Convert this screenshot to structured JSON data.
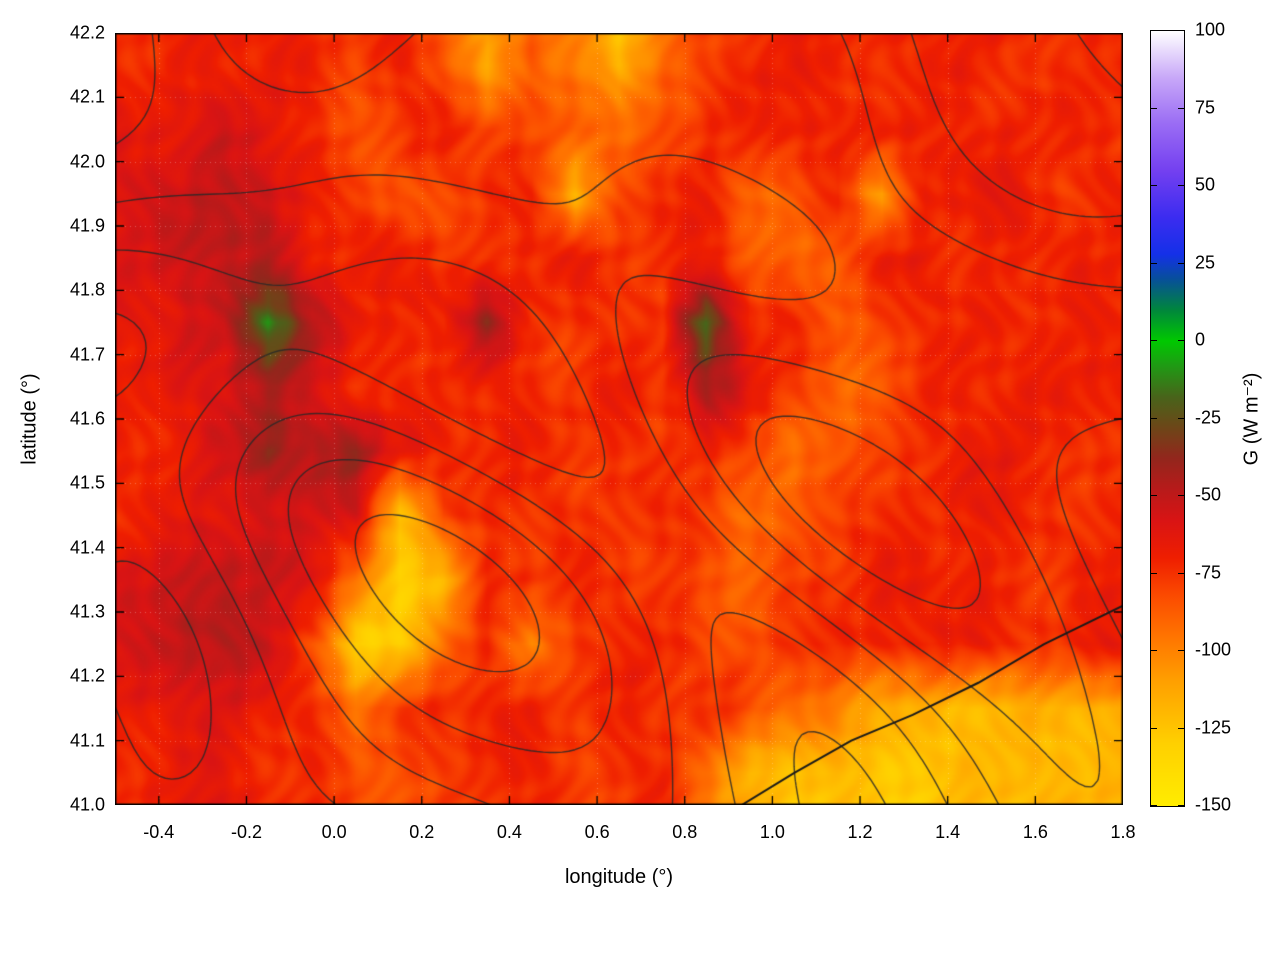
{
  "chart_data": {
    "type": "heatmap",
    "title": "",
    "xlabel": "longitude (°)",
    "ylabel": "latitude (°)",
    "colorbar_label": "G (W m⁻²)",
    "units": "W m⁻²",
    "xlim": [
      -0.5,
      1.8
    ],
    "ylim": [
      41.0,
      42.2
    ],
    "clim": [
      -150,
      100
    ],
    "xtick_values": [
      -0.4,
      -0.2,
      0.0,
      0.2,
      0.4,
      0.6,
      0.8,
      1.0,
      1.2,
      1.4,
      1.6,
      1.8
    ],
    "xtick_labels": [
      "-0.4",
      "-0.2",
      "0.0",
      "0.2",
      "0.4",
      "0.6",
      "0.8",
      "1.0",
      "1.2",
      "1.4",
      "1.6",
      "1.8"
    ],
    "ytick_values": [
      41.0,
      41.1,
      41.2,
      41.3,
      41.4,
      41.5,
      41.6,
      41.7,
      41.8,
      41.9,
      42.0,
      42.1,
      42.2
    ],
    "ytick_labels": [
      "41.0",
      "41.1",
      "41.2",
      "41.3",
      "41.4",
      "41.5",
      "41.6",
      "41.7",
      "41.8",
      "41.9",
      "42.0",
      "42.1",
      "42.2"
    ],
    "cbar_tick_values": [
      100,
      75,
      50,
      25,
      0,
      -25,
      -50,
      -75,
      -100,
      -125,
      -150
    ],
    "cbar_tick_labels": [
      "100",
      "75",
      "50",
      "25",
      "0",
      "-25",
      "-50",
      "-75",
      "-100",
      "-125",
      "-150"
    ],
    "palette_stops": [
      [
        -150,
        "#ffec00"
      ],
      [
        -130,
        "#ffd000"
      ],
      [
        -110,
        "#ffa000"
      ],
      [
        -95,
        "#ff7300"
      ],
      [
        -82,
        "#fb4a00"
      ],
      [
        -70,
        "#ef1e00"
      ],
      [
        -58,
        "#d91414"
      ],
      [
        -48,
        "#b81a1a"
      ],
      [
        -38,
        "#93261c"
      ],
      [
        -28,
        "#6d4618"
      ],
      [
        -18,
        "#48641a"
      ],
      [
        -8,
        "#1f9a14"
      ],
      [
        0,
        "#00c800"
      ],
      [
        10,
        "#00863c"
      ],
      [
        20,
        "#074f9a"
      ],
      [
        28,
        "#1430e8"
      ],
      [
        40,
        "#3c2cf0"
      ],
      [
        55,
        "#7440f0"
      ],
      [
        70,
        "#9a6cf4"
      ],
      [
        85,
        "#c8a8f8"
      ],
      [
        100,
        "#ffffff"
      ]
    ],
    "grid_lon_start": -0.45,
    "grid_lat_start": 42.15,
    "grid_step": 0.1,
    "grid_lon_count": 23,
    "grid_lat_count": 12,
    "values": [
      [
        -72,
        -70,
        -66,
        -70,
        -74,
        -78,
        -72,
        -85,
        -115,
        -85,
        -95,
        -120,
        -90,
        -78,
        -72,
        -70,
        -72,
        -74,
        -72,
        -70,
        -72,
        -74,
        -72
      ],
      [
        -66,
        -58,
        -55,
        -62,
        -72,
        -80,
        -78,
        -72,
        -78,
        -82,
        -90,
        -95,
        -80,
        -74,
        -72,
        -70,
        -68,
        -72,
        -74,
        -72,
        -70,
        -72,
        -74
      ],
      [
        -60,
        -55,
        -50,
        -52,
        -66,
        -80,
        -85,
        -80,
        -76,
        -72,
        -115,
        -80,
        -72,
        -70,
        -85,
        -88,
        -72,
        -110,
        -70,
        -68,
        -70,
        -74,
        -72
      ],
      [
        -56,
        -50,
        -54,
        -48,
        -66,
        -72,
        -70,
        -74,
        -76,
        -72,
        -70,
        -72,
        -74,
        -72,
        -88,
        -90,
        -85,
        -72,
        -66,
        -70,
        -72,
        -70,
        -68
      ],
      [
        -66,
        -60,
        -52,
        -8,
        -50,
        -68,
        -74,
        -72,
        -42,
        -74,
        -72,
        -74,
        -72,
        -12,
        -70,
        -74,
        -88,
        -82,
        -72,
        -74,
        -72,
        -68,
        -70
      ],
      [
        -70,
        -62,
        -56,
        -45,
        -60,
        -70,
        -72,
        -76,
        -72,
        -74,
        -76,
        -72,
        -74,
        -40,
        -62,
        -78,
        -90,
        -82,
        -76,
        -72,
        -70,
        -68,
        -72
      ],
      [
        -72,
        -66,
        -56,
        -30,
        -52,
        -35,
        -66,
        -72,
        -74,
        -72,
        -74,
        -76,
        -74,
        -72,
        -78,
        -95,
        -88,
        -80,
        -76,
        -70,
        -68,
        -72,
        -74
      ],
      [
        -70,
        -68,
        -64,
        -58,
        -54,
        -62,
        -125,
        -74,
        -74,
        -76,
        -74,
        -72,
        -76,
        -82,
        -92,
        -88,
        -82,
        -76,
        -70,
        -68,
        -72,
        -74,
        -72
      ],
      [
        -56,
        -50,
        -48,
        -52,
        -62,
        -95,
        -135,
        -120,
        -76,
        -74,
        -72,
        -74,
        -76,
        -82,
        -88,
        -82,
        -76,
        -70,
        -68,
        -70,
        -74,
        -72,
        -68
      ],
      [
        -60,
        -52,
        -46,
        -52,
        -85,
        -135,
        -125,
        -95,
        -76,
        -100,
        -74,
        -72,
        -74,
        -76,
        -82,
        -76,
        -72,
        -70,
        -68,
        -72,
        -74,
        -72,
        -68
      ],
      [
        -68,
        -64,
        -60,
        -66,
        -72,
        -92,
        -78,
        -74,
        -72,
        -74,
        -76,
        -74,
        -72,
        -74,
        -78,
        -90,
        -100,
        -112,
        -120,
        -122,
        -120,
        -118,
        -116
      ],
      [
        -72,
        -68,
        -64,
        -72,
        -74,
        -86,
        -82,
        -76,
        -74,
        -72,
        -74,
        -76,
        -74,
        -95,
        -118,
        -124,
        -126,
        -126,
        -124,
        -122,
        -120,
        -118,
        -116
      ]
    ],
    "contour_lines": {
      "color": "#282828",
      "levels": [
        -0.9,
        -0.3,
        0.3,
        0.9,
        1.5
      ]
    },
    "sea_boundary": [
      [
        0.93,
        41.0
      ],
      [
        1.05,
        41.05
      ],
      [
        1.18,
        41.1
      ],
      [
        1.32,
        41.14
      ],
      [
        1.47,
        41.19
      ],
      [
        1.62,
        41.25
      ],
      [
        1.8,
        41.31
      ]
    ]
  }
}
